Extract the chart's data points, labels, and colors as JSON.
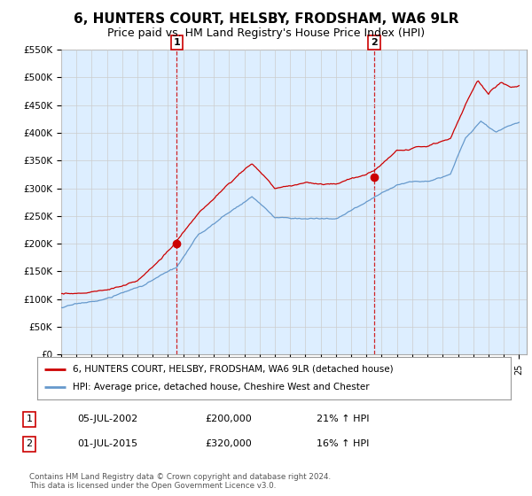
{
  "title": "6, HUNTERS COURT, HELSBY, FRODSHAM, WA6 9LR",
  "subtitle": "Price paid vs. HM Land Registry's House Price Index (HPI)",
  "ylim": [
    0,
    550000
  ],
  "yticks": [
    0,
    50000,
    100000,
    150000,
    200000,
    250000,
    300000,
    350000,
    400000,
    450000,
    500000,
    550000
  ],
  "ytick_labels": [
    "£0",
    "£50K",
    "£100K",
    "£150K",
    "£200K",
    "£250K",
    "£300K",
    "£350K",
    "£400K",
    "£450K",
    "£500K",
    "£550K"
  ],
  "hpi_color": "#6699cc",
  "price_color": "#cc0000",
  "marker_color": "#cc0000",
  "chart_bg": "#ddeeff",
  "sale1_year": 2002.58,
  "sale1_price": 200000,
  "sale1_label": "1",
  "sale2_year": 2015.5,
  "sale2_price": 320000,
  "sale2_label": "2",
  "legend_line1": "6, HUNTERS COURT, HELSBY, FRODSHAM, WA6 9LR (detached house)",
  "legend_line2": "HPI: Average price, detached house, Cheshire West and Chester",
  "table_row1": [
    "1",
    "05-JUL-2002",
    "£200,000",
    "21% ↑ HPI"
  ],
  "table_row2": [
    "2",
    "01-JUL-2015",
    "£320,000",
    "16% ↑ HPI"
  ],
  "footnote": "Contains HM Land Registry data © Crown copyright and database right 2024.\nThis data is licensed under the Open Government Licence v3.0.",
  "background_color": "#ffffff",
  "grid_color": "#cccccc",
  "title_fontsize": 11,
  "subtitle_fontsize": 9
}
